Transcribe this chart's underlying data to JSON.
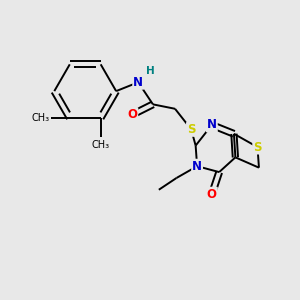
{
  "background_color": "#e8e8e8",
  "bond_color": "#000000",
  "atom_colors": {
    "N": "#0000cc",
    "O": "#ff0000",
    "S": "#cccc00",
    "H": "#008080",
    "C": "#000000"
  },
  "figsize": [
    3.0,
    3.0
  ],
  "dpi": 100,
  "lw": 1.4,
  "fs": 8.5
}
